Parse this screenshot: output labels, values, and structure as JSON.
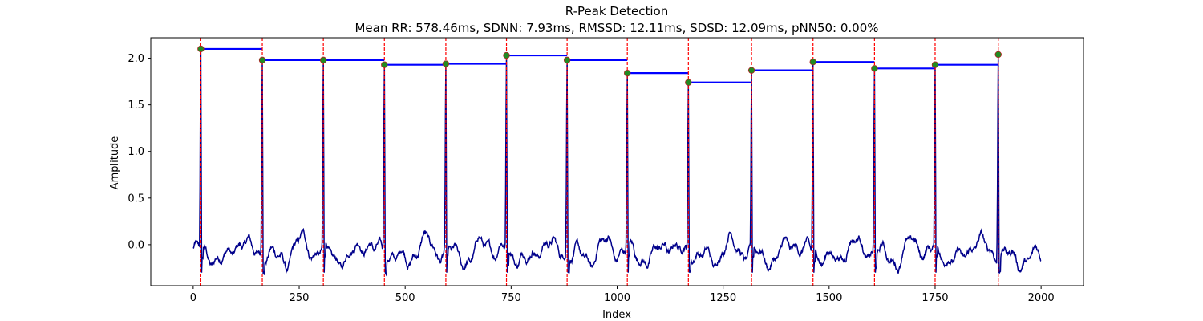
{
  "chart_data": {
    "type": "line",
    "title": "R-Peak Detection",
    "subtitle": "Mean RR: 578.46ms, SDNN: 7.93ms, RMSSD: 12.11ms, SDSD: 12.09ms, pNN50: 0.00%",
    "xlabel": "Index",
    "ylabel": "Amplitude",
    "xlim": [
      -100,
      2100
    ],
    "ylim": [
      -0.44,
      2.22
    ],
    "xticks": [
      0,
      250,
      500,
      750,
      1000,
      1250,
      1500,
      1750,
      2000
    ],
    "yticks": [
      0.0,
      0.5,
      1.0,
      1.5,
      2.0
    ],
    "xtick_labels": [
      "0",
      "250",
      "500",
      "750",
      "1000",
      "1250",
      "1500",
      "1750",
      "2000"
    ],
    "ytick_labels": [
      "0.0",
      "0.5",
      "1.0",
      "1.5",
      "2.0"
    ],
    "grid": false,
    "colors": {
      "signal": "#00008b",
      "peak_line": "#ff0000",
      "rr_segment": "#0000ff",
      "peak_marker": "#228b22",
      "peak_marker_edge": "#b22222"
    },
    "signal": {
      "x_range": [
        0,
        2000
      ],
      "baseline_range": [
        -0.32,
        0.22
      ]
    },
    "peaks": {
      "x": [
        18,
        163,
        307,
        451,
        596,
        739,
        882,
        1024,
        1168,
        1317,
        1462,
        1607,
        1750,
        1899
      ],
      "y": [
        2.1,
        1.98,
        1.98,
        1.93,
        1.94,
        2.03,
        1.98,
        1.84,
        1.74,
        1.87,
        1.96,
        1.89,
        1.93,
        2.04
      ]
    }
  }
}
